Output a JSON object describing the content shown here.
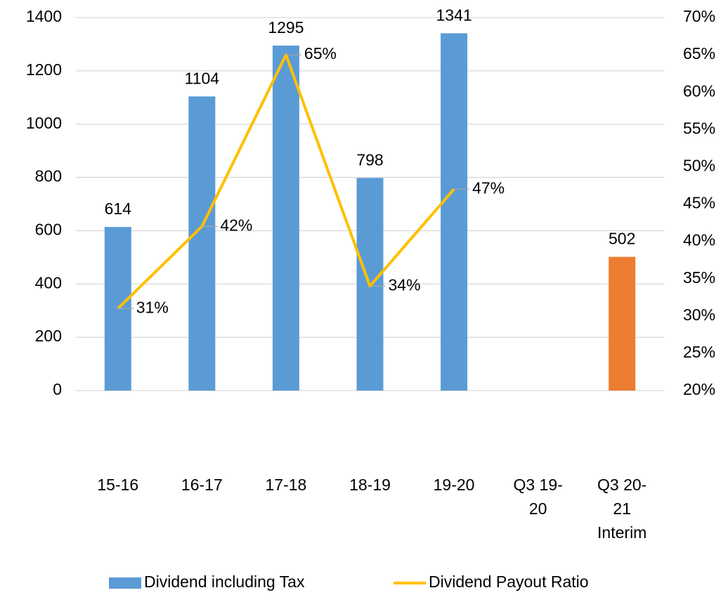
{
  "chart_data": {
    "type": "bar",
    "categories": [
      "15-16",
      "16-17",
      "17-18",
      "18-19",
      "19-20",
      "Q3 19-20",
      "Q3 20-21 Interim"
    ],
    "series": [
      {
        "name": "Dividend including Tax",
        "type": "bar",
        "color": "#5b9bd5",
        "point_colors": [
          "#5b9bd5",
          "#5b9bd5",
          "#5b9bd5",
          "#5b9bd5",
          "#5b9bd5",
          "#5b9bd5",
          "#ed7d31"
        ],
        "values": [
          614,
          1104,
          1295,
          798,
          1341,
          null,
          502
        ]
      },
      {
        "name": "Dividend Payout Ratio",
        "type": "line",
        "color": "#ffc000",
        "axis": "y2",
        "values": [
          31,
          42,
          65,
          34,
          47,
          null,
          null
        ],
        "value_labels": [
          "31%",
          "42%",
          "65%",
          "34%",
          "47%",
          null,
          null
        ]
      }
    ],
    "ylim": [
      0,
      1400
    ],
    "yticks": [
      0,
      200,
      400,
      600,
      800,
      1000,
      1200,
      1400
    ],
    "y2lim": [
      20,
      70
    ],
    "y2ticks": [
      {
        "value": 20,
        "label": "20%"
      },
      {
        "value": 25,
        "label": "25%"
      },
      {
        "value": 30,
        "label": "30%"
      },
      {
        "value": 35,
        "label": "35%"
      },
      {
        "value": 40,
        "label": "40%"
      },
      {
        "value": 45,
        "label": "45%"
      },
      {
        "value": 50,
        "label": "50%"
      },
      {
        "value": 55,
        "label": "55%"
      },
      {
        "value": 60,
        "label": "60%"
      },
      {
        "value": 65,
        "label": "65%"
      },
      {
        "value": 70,
        "label": "70%"
      }
    ],
    "grid": true,
    "legend": "bottom"
  }
}
